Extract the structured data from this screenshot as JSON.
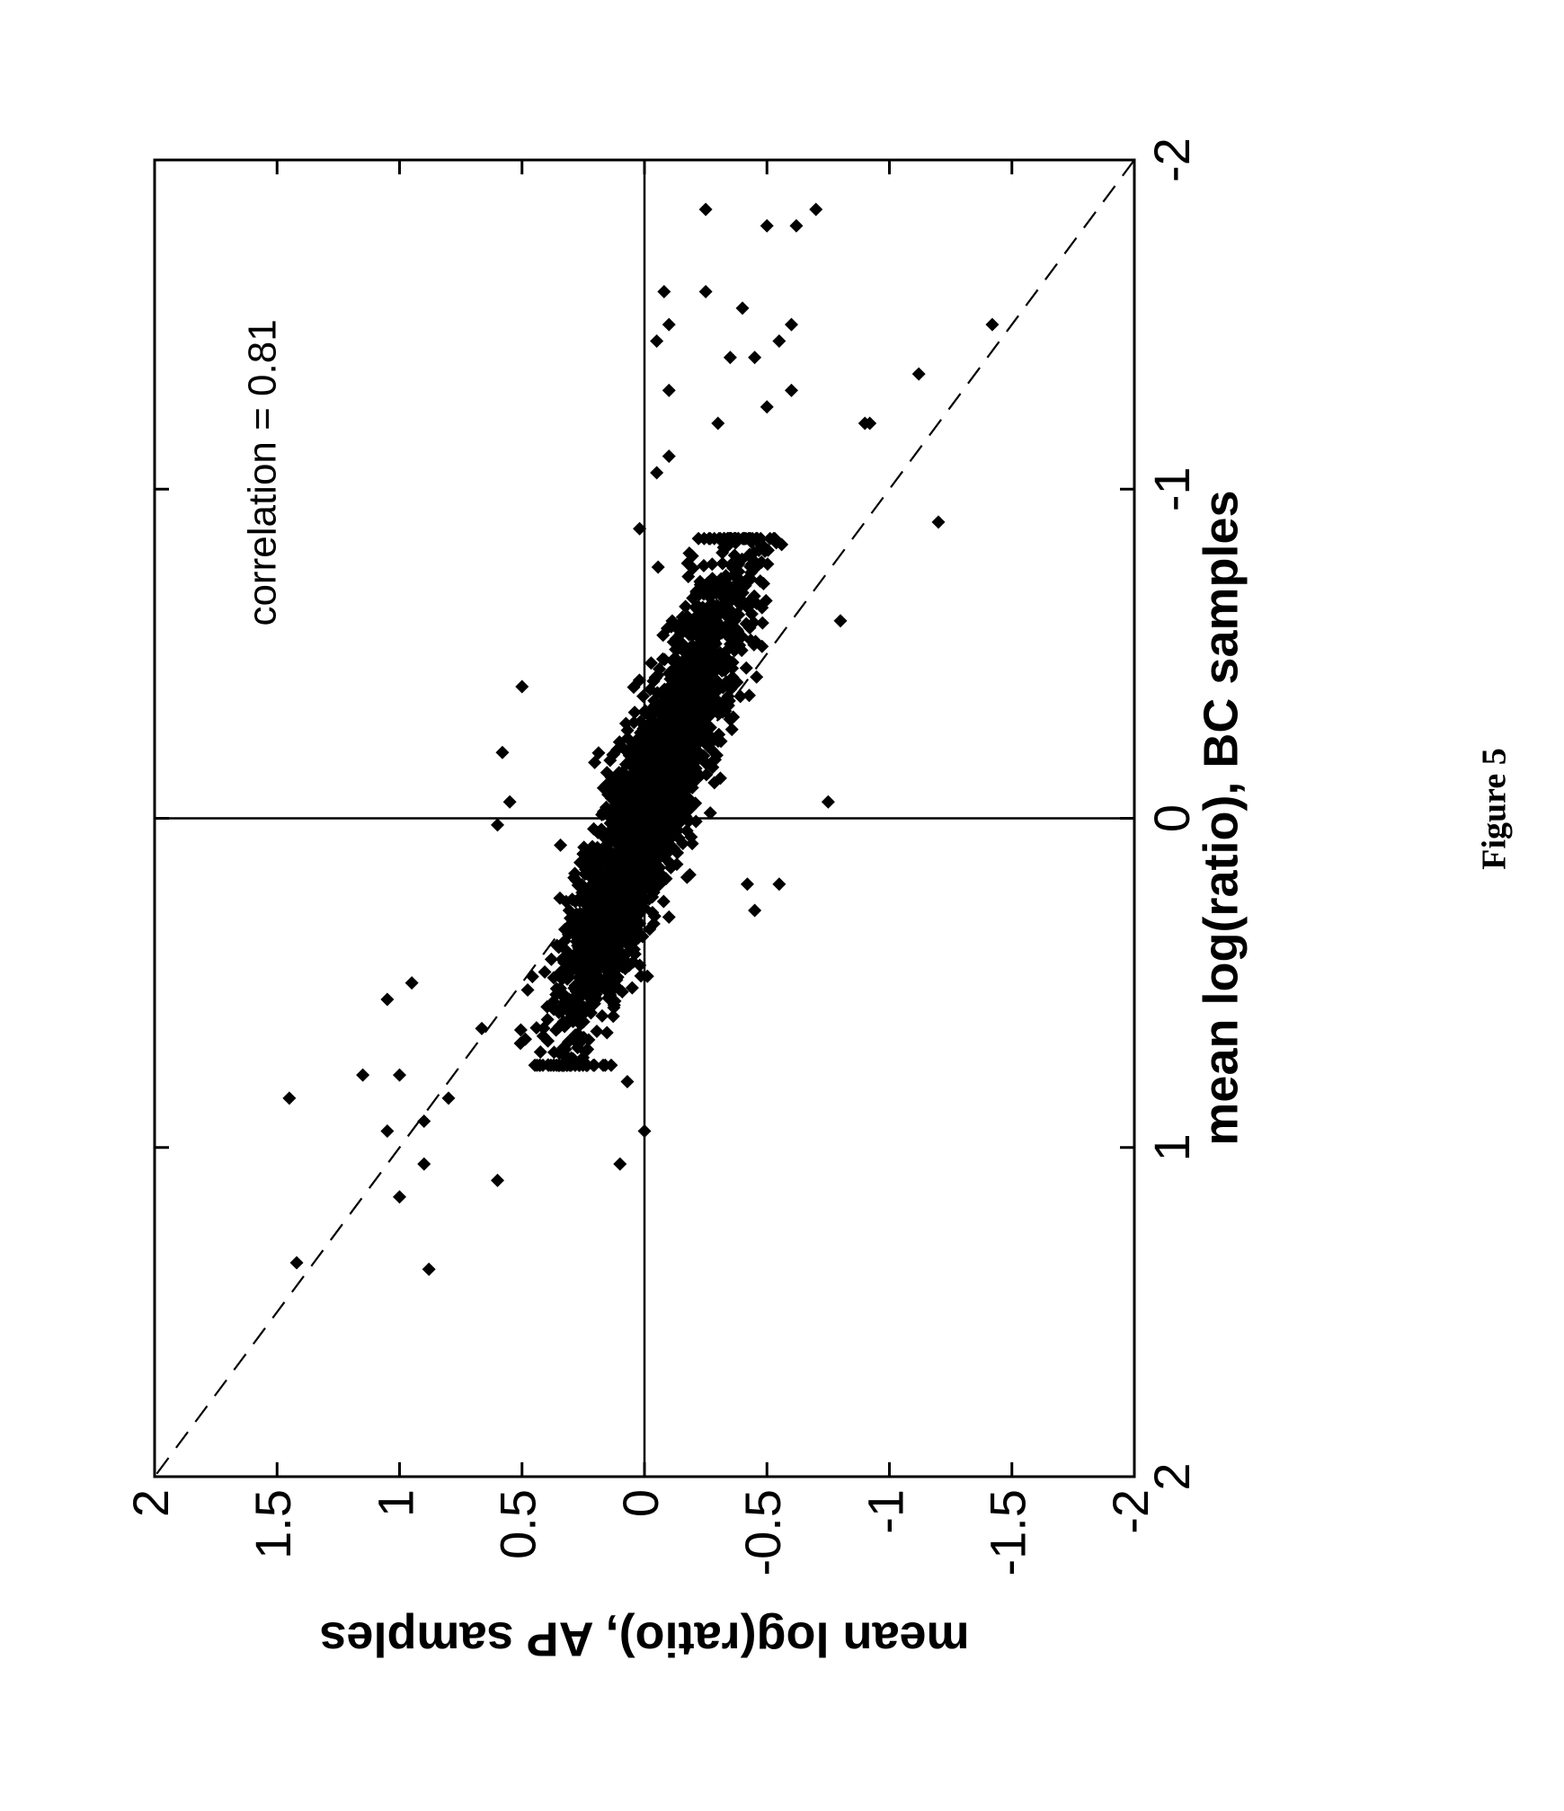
{
  "figure_caption": "Figure 5",
  "chart_data": {
    "type": "scatter",
    "orientation": "rotated 90 degrees clockwise on the page",
    "xlabel": "mean log(ratio), BC samples",
    "ylabel": "mean log(ratio), AP samples",
    "xlim": [
      -2,
      2
    ],
    "ylim": [
      -2,
      2
    ],
    "x_ticks": [
      "-2",
      "-1",
      "0",
      "1",
      "2"
    ],
    "y_ticks": [
      "-2",
      "-1.5",
      "-1",
      "-0.5",
      "0",
      "0.5",
      "1",
      "1.5",
      "2"
    ],
    "annotation": "correlation = 0.81",
    "grid": false,
    "reference_lines": [
      {
        "kind": "solid",
        "description": "x = 0"
      },
      {
        "kind": "solid",
        "description": "y = 0"
      },
      {
        "kind": "dashed",
        "description": "y = x"
      }
    ],
    "marker": "filled diamond",
    "marker_color": "#000000",
    "dense_cloud": {
      "description": "dense cluster of several thousand points along a line",
      "x_range": [
        -0.85,
        0.75
      ],
      "slope_approx": 0.47,
      "intercept_approx": 0.0
    },
    "outlier_points": [
      {
        "x": 0.85,
        "y": 1.45
      },
      {
        "x": 1.37,
        "y": 0.88
      },
      {
        "x": 1.35,
        "y": 1.42
      },
      {
        "x": 1.15,
        "y": 1.0
      },
      {
        "x": 1.05,
        "y": 0.9
      },
      {
        "x": 0.95,
        "y": 1.05
      },
      {
        "x": 0.92,
        "y": 0.9
      },
      {
        "x": 0.85,
        "y": 0.8
      },
      {
        "x": 1.1,
        "y": 0.6
      },
      {
        "x": 1.05,
        "y": 0.1
      },
      {
        "x": 0.95,
        "y": 0.0
      },
      {
        "x": 0.8,
        "y": 0.07
      },
      {
        "x": 0.78,
        "y": 1.0
      },
      {
        "x": 0.78,
        "y": 1.15
      },
      {
        "x": 0.55,
        "y": 1.05
      },
      {
        "x": 0.5,
        "y": 0.95
      },
      {
        "x": 0.4,
        "y": 0.2
      },
      {
        "x": 0.3,
        "y": -0.1
      },
      {
        "x": 0.2,
        "y": -0.42
      },
      {
        "x": 0.2,
        "y": -0.55
      },
      {
        "x": 0.28,
        "y": -0.45
      },
      {
        "x": 0.02,
        "y": 0.6
      },
      {
        "x": -0.05,
        "y": 0.55
      },
      {
        "x": -0.2,
        "y": 0.58
      },
      {
        "x": -0.4,
        "y": 0.5
      },
      {
        "x": -0.05,
        "y": -0.75
      },
      {
        "x": -0.6,
        "y": -0.8
      },
      {
        "x": -0.9,
        "y": -1.2
      },
      {
        "x": -1.2,
        "y": -0.9
      },
      {
        "x": -1.2,
        "y": -0.92
      },
      {
        "x": -1.35,
        "y": -1.12
      },
      {
        "x": -1.5,
        "y": -1.42
      },
      {
        "x": -0.88,
        "y": 0.02
      },
      {
        "x": -1.1,
        "y": -0.1
      },
      {
        "x": -1.3,
        "y": -0.1
      },
      {
        "x": -1.5,
        "y": -0.1
      },
      {
        "x": -1.6,
        "y": -0.25
      },
      {
        "x": -1.55,
        "y": -0.4
      },
      {
        "x": -1.45,
        "y": -0.55
      },
      {
        "x": -1.5,
        "y": -0.6
      },
      {
        "x": -1.8,
        "y": -0.5
      },
      {
        "x": -1.8,
        "y": -0.62
      },
      {
        "x": -1.85,
        "y": -0.7
      },
      {
        "x": -1.85,
        "y": -0.25
      },
      {
        "x": -1.05,
        "y": -0.05
      },
      {
        "x": -1.2,
        "y": -0.3
      },
      {
        "x": -1.4,
        "y": -0.35
      },
      {
        "x": -1.3,
        "y": -0.6
      },
      {
        "x": -1.4,
        "y": -0.45
      },
      {
        "x": -1.25,
        "y": -0.5
      },
      {
        "x": -1.45,
        "y": -0.05
      },
      {
        "x": -1.6,
        "y": -0.08
      }
    ]
  }
}
